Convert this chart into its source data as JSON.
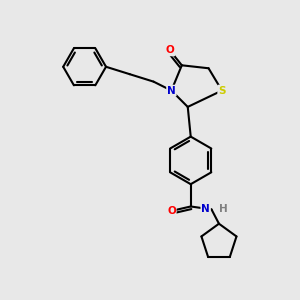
{
  "bg_color": "#e8e8e8",
  "bond_color": "#000000",
  "atom_colors": {
    "O": "#ff0000",
    "N": "#0000cd",
    "S": "#cccc00",
    "H": "#808080",
    "C": "#000000"
  },
  "font_size": 7.5,
  "bond_width": 1.5,
  "figsize": [
    3.0,
    3.0
  ],
  "dpi": 100
}
